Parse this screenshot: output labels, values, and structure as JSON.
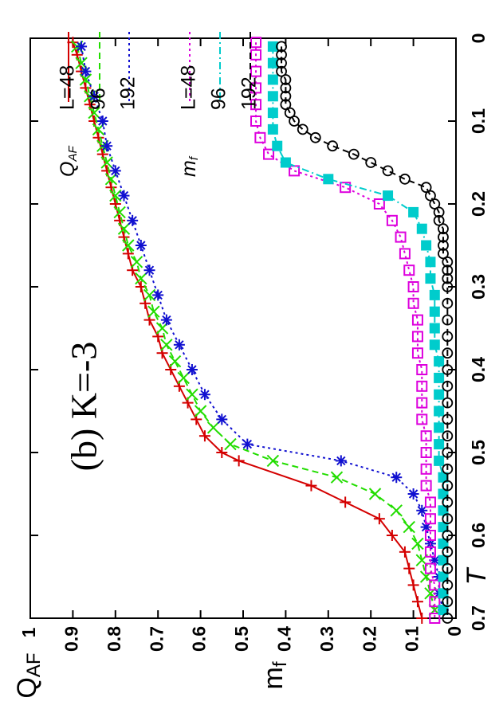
{
  "chart_data": {
    "type": "line",
    "orientation": "rotated-90-ccw",
    "annotation": "(b) K=-3",
    "xlabel": "T",
    "ylabel_primary": "Q_AF",
    "ylabel_secondary": "m_f",
    "xlim": [
      0,
      0.7
    ],
    "ylim": [
      0,
      1
    ],
    "x_ticks": [
      "0",
      "0.1",
      "0.2",
      "0.3",
      "0.4",
      "0.5",
      "0.6",
      "0.7"
    ],
    "y_ticks": [
      "0",
      "0.1",
      "0.2",
      "0.3",
      "0.4",
      "0.5",
      "0.6",
      "0.7",
      "0.8",
      "0.9",
      "1"
    ],
    "legend_position": "top-right",
    "legend_groups": [
      {
        "symbol": "Q",
        "subscript": "AF"
      },
      {
        "symbol": "m",
        "subscript": "f"
      }
    ],
    "series": [
      {
        "name": "L=48",
        "group": "Q_AF",
        "color": "#d40000",
        "marker": "plus",
        "dash": "solid",
        "x": [
          0.005,
          0.02,
          0.04,
          0.06,
          0.08,
          0.1,
          0.12,
          0.14,
          0.16,
          0.18,
          0.2,
          0.22,
          0.24,
          0.26,
          0.28,
          0.3,
          0.32,
          0.34,
          0.36,
          0.38,
          0.4,
          0.42,
          0.44,
          0.46,
          0.48,
          0.5,
          0.51,
          0.54,
          0.56,
          0.58,
          0.6,
          0.62,
          0.64,
          0.66,
          0.68,
          0.7
        ],
        "y": [
          0.9,
          0.89,
          0.88,
          0.87,
          0.86,
          0.85,
          0.84,
          0.83,
          0.82,
          0.81,
          0.8,
          0.79,
          0.78,
          0.77,
          0.76,
          0.74,
          0.73,
          0.72,
          0.7,
          0.69,
          0.67,
          0.65,
          0.63,
          0.61,
          0.59,
          0.55,
          0.51,
          0.34,
          0.26,
          0.18,
          0.15,
          0.12,
          0.11,
          0.1,
          0.09,
          0.08
        ]
      },
      {
        "name": "96",
        "group": "Q_AF",
        "color": "#22dd00",
        "marker": "x",
        "dash": "dashed",
        "x": [
          0.01,
          0.03,
          0.05,
          0.07,
          0.09,
          0.11,
          0.13,
          0.15,
          0.17,
          0.19,
          0.21,
          0.23,
          0.25,
          0.27,
          0.29,
          0.31,
          0.33,
          0.35,
          0.37,
          0.39,
          0.41,
          0.43,
          0.45,
          0.47,
          0.49,
          0.51,
          0.53,
          0.55,
          0.57,
          0.59,
          0.61,
          0.63,
          0.65,
          0.67,
          0.69
        ],
        "y": [
          0.89,
          0.88,
          0.87,
          0.86,
          0.85,
          0.84,
          0.83,
          0.82,
          0.81,
          0.8,
          0.79,
          0.78,
          0.77,
          0.75,
          0.74,
          0.72,
          0.71,
          0.69,
          0.68,
          0.66,
          0.64,
          0.62,
          0.6,
          0.57,
          0.53,
          0.43,
          0.28,
          0.19,
          0.14,
          0.11,
          0.09,
          0.08,
          0.07,
          0.06,
          0.05
        ]
      },
      {
        "name": "192",
        "group": "Q_AF",
        "color": "#1010d0",
        "marker": "star",
        "dash": "dotted",
        "x": [
          0.01,
          0.04,
          0.07,
          0.1,
          0.13,
          0.16,
          0.19,
          0.22,
          0.25,
          0.28,
          0.31,
          0.34,
          0.37,
          0.4,
          0.43,
          0.46,
          0.49,
          0.51,
          0.53,
          0.55,
          0.57,
          0.59,
          0.61,
          0.63,
          0.65,
          0.67,
          0.69
        ],
        "y": [
          0.88,
          0.87,
          0.85,
          0.83,
          0.82,
          0.8,
          0.78,
          0.76,
          0.74,
          0.72,
          0.7,
          0.68,
          0.65,
          0.62,
          0.59,
          0.55,
          0.49,
          0.27,
          0.14,
          0.1,
          0.08,
          0.07,
          0.06,
          0.05,
          0.04,
          0.04,
          0.03
        ]
      },
      {
        "name": "L=48",
        "group": "m_f",
        "color": "#dd00dd",
        "marker": "square-open",
        "dash": "dotted",
        "x": [
          0.005,
          0.02,
          0.04,
          0.06,
          0.08,
          0.1,
          0.12,
          0.14,
          0.16,
          0.18,
          0.2,
          0.22,
          0.24,
          0.26,
          0.28,
          0.3,
          0.32,
          0.34,
          0.36,
          0.38,
          0.4,
          0.42,
          0.44,
          0.46,
          0.48,
          0.5,
          0.52,
          0.54,
          0.56,
          0.58,
          0.6,
          0.62,
          0.64,
          0.66,
          0.68,
          0.7
        ],
        "y": [
          0.47,
          0.47,
          0.47,
          0.47,
          0.47,
          0.47,
          0.46,
          0.44,
          0.38,
          0.26,
          0.18,
          0.15,
          0.13,
          0.12,
          0.11,
          0.1,
          0.1,
          0.09,
          0.09,
          0.09,
          0.08,
          0.08,
          0.08,
          0.08,
          0.07,
          0.07,
          0.07,
          0.07,
          0.06,
          0.06,
          0.06,
          0.06,
          0.06,
          0.05,
          0.05,
          0.05
        ]
      },
      {
        "name": "96",
        "group": "m_f",
        "color": "#00cccc",
        "marker": "square-filled",
        "dash": "dashdot",
        "x": [
          0.01,
          0.03,
          0.05,
          0.07,
          0.09,
          0.11,
          0.13,
          0.15,
          0.17,
          0.19,
          0.21,
          0.23,
          0.25,
          0.27,
          0.29,
          0.31,
          0.33,
          0.35,
          0.37,
          0.39,
          0.41,
          0.43,
          0.45,
          0.47,
          0.49,
          0.51,
          0.53,
          0.55,
          0.57,
          0.59,
          0.61,
          0.63,
          0.65,
          0.67,
          0.69
        ],
        "y": [
          0.43,
          0.43,
          0.43,
          0.43,
          0.43,
          0.43,
          0.42,
          0.4,
          0.3,
          0.16,
          0.1,
          0.08,
          0.07,
          0.06,
          0.06,
          0.05,
          0.05,
          0.05,
          0.05,
          0.04,
          0.04,
          0.04,
          0.04,
          0.04,
          0.04,
          0.04,
          0.03,
          0.03,
          0.03,
          0.03,
          0.03,
          0.03,
          0.03,
          0.03,
          0.03
        ]
      },
      {
        "name": "192",
        "group": "m_f",
        "color": "#000000",
        "marker": "circle-open",
        "dash": "dashed",
        "x": [
          0.01,
          0.02,
          0.03,
          0.04,
          0.05,
          0.06,
          0.07,
          0.08,
          0.09,
          0.1,
          0.11,
          0.12,
          0.13,
          0.14,
          0.15,
          0.16,
          0.17,
          0.18,
          0.19,
          0.2,
          0.21,
          0.22,
          0.23,
          0.24,
          0.25,
          0.26,
          0.27,
          0.28,
          0.29,
          0.3,
          0.32,
          0.34,
          0.36,
          0.38,
          0.4,
          0.42,
          0.44,
          0.46,
          0.48,
          0.5,
          0.52,
          0.54,
          0.56,
          0.58,
          0.6,
          0.62,
          0.64,
          0.66,
          0.68,
          0.7
        ],
        "y": [
          0.41,
          0.41,
          0.41,
          0.41,
          0.4,
          0.4,
          0.4,
          0.4,
          0.39,
          0.38,
          0.36,
          0.33,
          0.29,
          0.24,
          0.2,
          0.16,
          0.12,
          0.07,
          0.06,
          0.05,
          0.04,
          0.04,
          0.03,
          0.03,
          0.03,
          0.03,
          0.02,
          0.02,
          0.02,
          0.02,
          0.02,
          0.02,
          0.02,
          0.02,
          0.02,
          0.02,
          0.02,
          0.02,
          0.02,
          0.02,
          0.02,
          0.02,
          0.02,
          0.02,
          0.02,
          0.02,
          0.02,
          0.02,
          0.02,
          0.02
        ]
      }
    ]
  }
}
